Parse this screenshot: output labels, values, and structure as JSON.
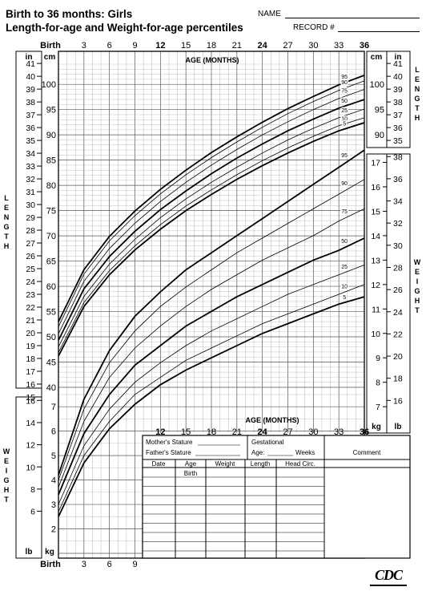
{
  "header": {
    "title_line1": "Birth to 36 months: Girls",
    "title_line2": "Length-for-age and Weight-for-age percentiles",
    "name_label": "NAME",
    "record_label": "RECORD #"
  },
  "logo_text": "CDC",
  "chart_data": {
    "type": "line",
    "title": "Length-for-age and Weight-for-age percentiles",
    "x_axis": {
      "label": "AGE (MONTHS)",
      "range": [
        0,
        36
      ],
      "top_ticks": [
        "Birth",
        "3",
        "6",
        "9",
        "12",
        "15",
        "18",
        "21",
        "24",
        "27",
        "30",
        "33",
        "36"
      ],
      "bottom_ticks": [
        "Birth",
        "3",
        "6",
        "9"
      ],
      "mid_ticks": [
        "12",
        "15",
        "18",
        "21",
        "24",
        "27",
        "30",
        "33",
        "36"
      ]
    },
    "length_axis": {
      "label": "LENGTH",
      "cm_unit": "cm",
      "in_unit": "in",
      "cm_range": [
        40,
        104
      ],
      "in_range": [
        15,
        41
      ],
      "cm_ticks_left": [
        "100",
        "95",
        "90",
        "85",
        "80",
        "75",
        "70",
        "65",
        "60",
        "55",
        "50",
        "45",
        "40"
      ],
      "cm_ticks_right": [
        "100",
        "95",
        "90"
      ],
      "in_ticks_left": [
        "41",
        "40",
        "39",
        "38",
        "37",
        "36",
        "35",
        "34",
        "33",
        "32",
        "31",
        "30",
        "29",
        "28",
        "27",
        "26",
        "25",
        "24",
        "23",
        "22",
        "21",
        "20",
        "19",
        "18",
        "17",
        "16",
        "15"
      ],
      "in_ticks_right": [
        "41",
        "40",
        "39",
        "38",
        "37",
        "36",
        "35"
      ]
    },
    "weight_axis": {
      "label": "WEIGHT",
      "kg_unit": "kg",
      "lb_unit": "lb",
      "kg_range": [
        1,
        18
      ],
      "kg_ticks_right": [
        "17",
        "16",
        "15",
        "14",
        "13",
        "12",
        "11",
        "10",
        "9",
        "8",
        "7"
      ],
      "lb_ticks_right": [
        "38",
        "36",
        "34",
        "32",
        "30",
        "28",
        "26",
        "24",
        "22",
        "20",
        "18",
        "16"
      ],
      "kg_ticks_left": [
        "7",
        "6",
        "5",
        "4",
        "3",
        "2"
      ],
      "lb_ticks_left": [
        "16",
        "14",
        "12",
        "10",
        "8",
        "6"
      ]
    },
    "length_series": [
      {
        "name": "95",
        "x": [
          0,
          3,
          6,
          9,
          12,
          15,
          18,
          21,
          24,
          27,
          30,
          33,
          36
        ],
        "y": [
          53.0,
          63.3,
          69.9,
          74.9,
          79.2,
          83.0,
          86.5,
          89.6,
          92.5,
          95.2,
          97.6,
          99.9,
          101.8
        ]
      },
      {
        "name": "90",
        "x": [
          0,
          3,
          6,
          9,
          12,
          15,
          18,
          21,
          24,
          27,
          30,
          33,
          36
        ],
        "y": [
          52.0,
          62.4,
          69.0,
          74.0,
          78.3,
          82.1,
          85.5,
          88.6,
          91.5,
          94.2,
          96.6,
          98.8,
          100.7
        ]
      },
      {
        "name": "75",
        "x": [
          0,
          3,
          6,
          9,
          12,
          15,
          18,
          21,
          24,
          27,
          30,
          33,
          36
        ],
        "y": [
          50.6,
          61.0,
          67.5,
          72.5,
          76.8,
          80.6,
          84.0,
          87.1,
          90.0,
          92.6,
          95.0,
          97.2,
          99.0
        ]
      },
      {
        "name": "50",
        "x": [
          0,
          3,
          6,
          9,
          12,
          15,
          18,
          21,
          24,
          27,
          30,
          33,
          36
        ],
        "y": [
          49.3,
          59.5,
          65.9,
          70.9,
          75.2,
          78.9,
          82.3,
          85.4,
          88.2,
          90.8,
          93.1,
          95.3,
          97.0
        ]
      },
      {
        "name": "25",
        "x": [
          0,
          3,
          6,
          9,
          12,
          15,
          18,
          21,
          24,
          27,
          30,
          33,
          36
        ],
        "y": [
          48.0,
          58.0,
          64.4,
          69.3,
          73.6,
          77.3,
          80.6,
          83.6,
          86.4,
          89.0,
          91.3,
          93.4,
          95.1
        ]
      },
      {
        "name": "10",
        "x": [
          0,
          3,
          6,
          9,
          12,
          15,
          18,
          21,
          24,
          27,
          30,
          33,
          36
        ],
        "y": [
          46.9,
          56.8,
          63.1,
          68.0,
          72.2,
          75.9,
          79.1,
          82.1,
          84.9,
          87.4,
          89.7,
          91.8,
          93.4
        ]
      },
      {
        "name": "5",
        "x": [
          0,
          3,
          6,
          9,
          12,
          15,
          18,
          21,
          24,
          27,
          30,
          33,
          36
        ],
        "y": [
          46.2,
          56.0,
          62.3,
          67.2,
          71.3,
          75.0,
          78.2,
          81.2,
          83.9,
          86.4,
          88.7,
          90.8,
          92.4
        ]
      }
    ],
    "weight_series": [
      {
        "name": "95",
        "x": [
          0,
          3,
          6,
          9,
          12,
          15,
          18,
          21,
          24,
          27,
          30,
          33,
          36
        ],
        "y": [
          4.2,
          7.3,
          9.3,
          10.7,
          11.7,
          12.6,
          13.3,
          14.0,
          14.7,
          15.4,
          16.1,
          16.8,
          17.5
        ]
      },
      {
        "name": "90",
        "x": [
          0,
          3,
          6,
          9,
          12,
          15,
          18,
          21,
          24,
          27,
          30,
          33,
          36
        ],
        "y": [
          4.0,
          6.9,
          8.8,
          10.1,
          11.1,
          11.9,
          12.6,
          13.3,
          13.9,
          14.5,
          15.1,
          15.7,
          16.3
        ]
      },
      {
        "name": "75",
        "x": [
          0,
          3,
          6,
          9,
          12,
          15,
          18,
          21,
          24,
          27,
          30,
          33,
          36
        ],
        "y": [
          3.7,
          6.4,
          8.2,
          9.4,
          10.3,
          11.1,
          11.8,
          12.4,
          13.0,
          13.5,
          14.0,
          14.6,
          15.1
        ]
      },
      {
        "name": "50",
        "x": [
          0,
          3,
          6,
          9,
          12,
          15,
          18,
          21,
          24,
          27,
          30,
          33,
          36
        ],
        "y": [
          3.4,
          5.9,
          7.5,
          8.7,
          9.5,
          10.3,
          10.9,
          11.5,
          12.0,
          12.5,
          13.0,
          13.4,
          13.9
        ]
      },
      {
        "name": "25",
        "x": [
          0,
          3,
          6,
          9,
          12,
          15,
          18,
          21,
          24,
          27,
          30,
          33,
          36
        ],
        "y": [
          3.0,
          5.4,
          6.9,
          8.0,
          8.8,
          9.5,
          10.1,
          10.6,
          11.1,
          11.6,
          12.0,
          12.4,
          12.8
        ]
      },
      {
        "name": "10",
        "x": [
          0,
          3,
          6,
          9,
          12,
          15,
          18,
          21,
          24,
          27,
          30,
          33,
          36
        ],
        "y": [
          2.7,
          5.0,
          6.4,
          7.5,
          8.2,
          8.9,
          9.4,
          9.9,
          10.4,
          10.8,
          11.2,
          11.6,
          12.0
        ]
      },
      {
        "name": "5",
        "x": [
          0,
          3,
          6,
          9,
          12,
          15,
          18,
          21,
          24,
          27,
          30,
          33,
          36
        ],
        "y": [
          2.5,
          4.7,
          6.1,
          7.1,
          7.9,
          8.5,
          9.0,
          9.5,
          10.0,
          10.4,
          10.8,
          11.2,
          11.5
        ]
      }
    ],
    "bold_percentiles": [
      "95",
      "50",
      "5"
    ],
    "grid": true
  },
  "form": {
    "mothers_stature": "Mother's Stature",
    "fathers_stature": "Father's Stature",
    "gestational": "Gestational",
    "age_label": "Age:",
    "weeks_label": "Weeks",
    "comment": "Comment",
    "columns": [
      "Date",
      "Age",
      "Weight",
      "Length",
      "Head  Circ."
    ],
    "birth_label": "Birth"
  },
  "colors": {
    "ink": "#000000",
    "paper": "#ffffff",
    "grid": "#9a9a9a"
  }
}
